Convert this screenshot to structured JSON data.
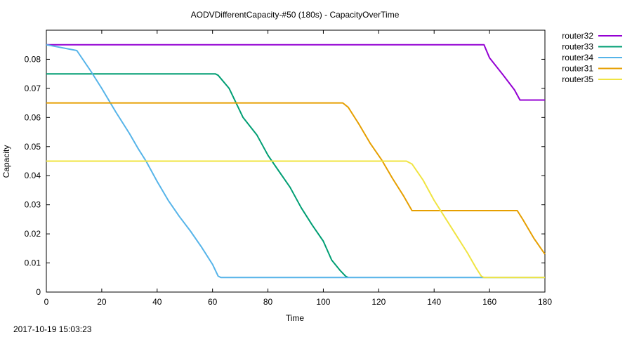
{
  "chart_data": {
    "type": "line",
    "title": "AODVDifferentCapacity-#50 (180s) - CapacityOverTime",
    "xlabel": "Time",
    "ylabel": "Capacity",
    "xlim": [
      0,
      180
    ],
    "ylim": [
      0,
      0.09
    ],
    "x_ticks": [
      0,
      20,
      40,
      60,
      80,
      100,
      120,
      140,
      160,
      180
    ],
    "y_ticks": [
      0,
      0.01,
      0.02,
      0.03,
      0.04,
      0.05,
      0.06,
      0.07,
      0.08
    ],
    "x_tick_labels": [
      "0",
      "20",
      "40",
      "60",
      "80",
      "100",
      "120",
      "140",
      "160",
      "180"
    ],
    "y_tick_labels": [
      "0",
      "0.01",
      "0.02",
      "0.03",
      "0.04",
      "0.05",
      "0.06",
      "0.07",
      "0.08"
    ],
    "grid": false,
    "legend_position": "outside-right",
    "series": [
      {
        "name": "router32",
        "color": "#9400d3",
        "points": [
          [
            0,
            0.085
          ],
          [
            158,
            0.085
          ],
          [
            160,
            0.0805
          ],
          [
            165,
            0.0745
          ],
          [
            169,
            0.0695
          ],
          [
            171,
            0.066
          ],
          [
            180,
            0.066
          ]
        ]
      },
      {
        "name": "router33",
        "color": "#009e73",
        "points": [
          [
            0,
            0.075
          ],
          [
            61,
            0.075
          ],
          [
            62,
            0.0745
          ],
          [
            66,
            0.07
          ],
          [
            71,
            0.06
          ],
          [
            76,
            0.054
          ],
          [
            80,
            0.047
          ],
          [
            84,
            0.0415
          ],
          [
            88,
            0.036
          ],
          [
            92,
            0.029
          ],
          [
            96,
            0.023
          ],
          [
            100,
            0.0175
          ],
          [
            103,
            0.011
          ],
          [
            106,
            0.0075
          ],
          [
            108,
            0.0055
          ],
          [
            109,
            0.005
          ]
        ]
      },
      {
        "name": "router34",
        "color": "#56b4e9",
        "points": [
          [
            0,
            0.085
          ],
          [
            11,
            0.083
          ],
          [
            16,
            0.076
          ],
          [
            20,
            0.07
          ],
          [
            25,
            0.062
          ],
          [
            30,
            0.0545
          ],
          [
            33,
            0.0495
          ],
          [
            36,
            0.045
          ],
          [
            40,
            0.038
          ],
          [
            44,
            0.0315
          ],
          [
            48,
            0.026
          ],
          [
            52,
            0.021
          ],
          [
            56,
            0.0155
          ],
          [
            60,
            0.0095
          ],
          [
            62,
            0.0055
          ],
          [
            63,
            0.005
          ],
          [
            180,
            0.005
          ]
        ]
      },
      {
        "name": "router31",
        "color": "#e69f00",
        "points": [
          [
            0,
            0.065
          ],
          [
            107,
            0.065
          ],
          [
            109,
            0.0635
          ],
          [
            113,
            0.0575
          ],
          [
            117,
            0.051
          ],
          [
            121,
            0.0455
          ],
          [
            125,
            0.039
          ],
          [
            129,
            0.033
          ],
          [
            132,
            0.028
          ],
          [
            170,
            0.028
          ],
          [
            172,
            0.025
          ],
          [
            176,
            0.0185
          ],
          [
            180,
            0.013
          ]
        ]
      },
      {
        "name": "router35",
        "color": "#f0e442",
        "points": [
          [
            0,
            0.045
          ],
          [
            130,
            0.045
          ],
          [
            132,
            0.044
          ],
          [
            136,
            0.0385
          ],
          [
            140,
            0.0315
          ],
          [
            144,
            0.0255
          ],
          [
            148,
            0.0195
          ],
          [
            152,
            0.0135
          ],
          [
            155,
            0.0085
          ],
          [
            157,
            0.0055
          ],
          [
            158,
            0.005
          ],
          [
            180,
            0.005
          ]
        ]
      }
    ]
  },
  "timestamp": "2017-10-19 15:03:23"
}
